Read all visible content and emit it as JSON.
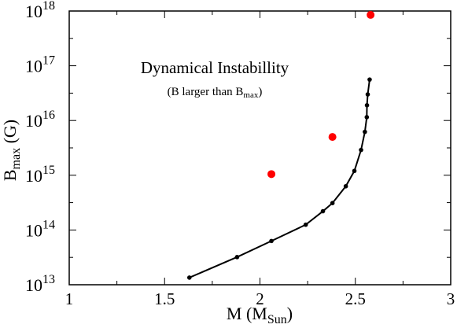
{
  "chart_data": {
    "type": "scatter",
    "title": "",
    "xlabel": {
      "main": "M (M",
      "sub": "Sun",
      "tail": ")"
    },
    "ylabel": {
      "main": "B",
      "sub": "max",
      "tail": " (G)"
    },
    "xlim": [
      1,
      3
    ],
    "ylim_log10": [
      13,
      18
    ],
    "yscale": "log",
    "grid": false,
    "x_ticks": [
      {
        "value": 1,
        "label": "1"
      },
      {
        "value": 1.5,
        "label": "1.5"
      },
      {
        "value": 2,
        "label": "2"
      },
      {
        "value": 2.5,
        "label": "2.5"
      },
      {
        "value": 3,
        "label": "3"
      }
    ],
    "y_ticks": [
      {
        "exp": 13,
        "base": "10",
        "sup": "13"
      },
      {
        "exp": 14,
        "base": "10",
        "sup": "14"
      },
      {
        "exp": 15,
        "base": "10",
        "sup": "15"
      },
      {
        "exp": 16,
        "base": "10",
        "sup": "16"
      },
      {
        "exp": 17,
        "base": "10",
        "sup": "17"
      },
      {
        "exp": 18,
        "base": "10",
        "sup": "18"
      }
    ],
    "annotation": {
      "title": "Dynamical Instabillity",
      "subtitle_main": "(B larger than B",
      "subtitle_sub": "max",
      "subtitle_tail": ")"
    },
    "series": [
      {
        "style": "line-with-dots",
        "color": "#000000",
        "points": [
          {
            "x": 1.63,
            "y": 13500000000000.0
          },
          {
            "x": 1.88,
            "y": 32000000000000.0
          },
          {
            "x": 2.06,
            "y": 63000000000000.0
          },
          {
            "x": 2.24,
            "y": 125000000000000.0
          },
          {
            "x": 2.33,
            "y": 220000000000000.0
          },
          {
            "x": 2.38,
            "y": 310000000000000.0
          },
          {
            "x": 2.45,
            "y": 630000000000000.0
          },
          {
            "x": 2.495,
            "y": 1200000000000000.0
          },
          {
            "x": 2.53,
            "y": 2900000000000000.0
          },
          {
            "x": 2.55,
            "y": 6200000000000000.0
          },
          {
            "x": 2.56,
            "y": 1.15e+16
          },
          {
            "x": 2.561,
            "y": 1.9e+16
          },
          {
            "x": 2.565,
            "y": 3e+16
          },
          {
            "x": 2.575,
            "y": 5.6e+16
          }
        ]
      },
      {
        "style": "markers",
        "color": "#ff0000",
        "points": [
          {
            "x": 2.06,
            "y": 1050000000000000.0
          },
          {
            "x": 2.38,
            "y": 5000000000000000.0
          },
          {
            "x": 2.58,
            "y": 8.5e+17
          }
        ]
      }
    ]
  }
}
